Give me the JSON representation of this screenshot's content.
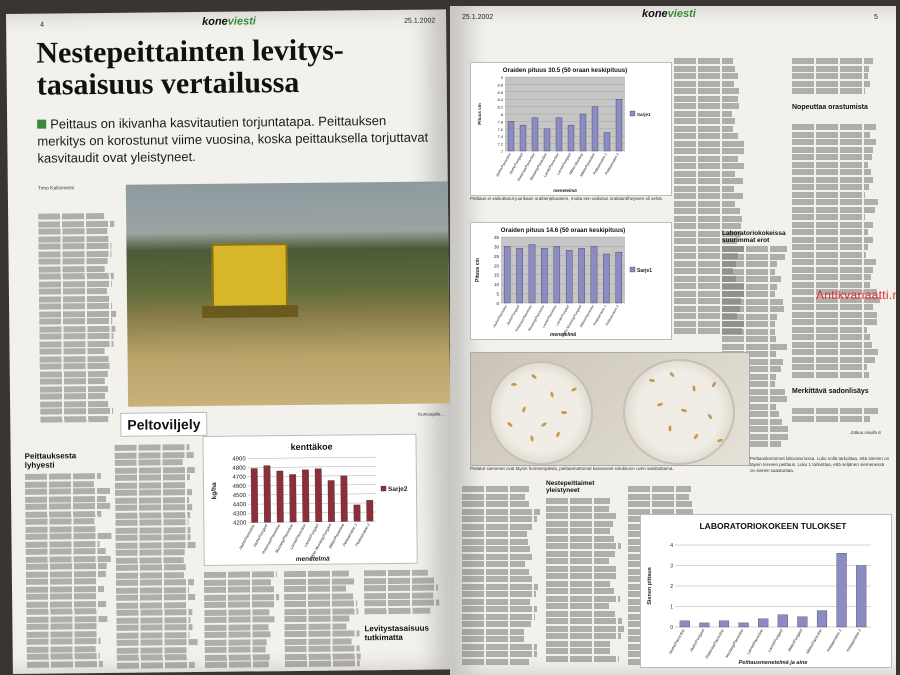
{
  "left_page": {
    "page_number": "4",
    "brand_a": "kone",
    "brand_b": "viesti",
    "date": "25.1.2002",
    "title": "Nestepeittainten levitys-tasaisuus vertailussa",
    "lead": "Peittaus on ikivanha kasvitautien torjuntatapa. Peittauksen merkitys on korostunut viime vuosina, koska peittauksella torjuttavat kasvitaudit ovat yleistyneet.",
    "byline": "Timo Kallioniemi",
    "section_tag": "Peltoviljely",
    "subheading_1": "Peittauksesta lyhyesti",
    "subheading_2": "Levitystasaisuus tutkimatta",
    "photo_caption": "Kumoajalla ..."
  },
  "right_page": {
    "page_number": "5",
    "brand_a": "kone",
    "brand_b": "viesti",
    "date": "25.1.2002",
    "subheading_1": "Laboratoriokokeissa suurimmat erot",
    "subheading_2": "Nopeuttaa orastumista",
    "subheading_3": "Merkittävä sadonlisäys",
    "subheading_4": "Nestepeittaimet yleistyneet",
    "chart1_caption": "Peittaus ei vaikuttanut juurikaan oraittenpituuteen, mutta sen vaikutus oraitaantiheyteen oli selvä.",
    "petri_caption": "Peitatut siemenet ovat täysin homeenpäisiä, peittaamattomat kasvaneet solukkoon oven sasittuittama.",
    "lab_caption": "Peittauskertoimet laboratoriossa. Luku nolla tarkoittaa, että siemen on täysin terveen peittaus. Luku 1 tarkoittaa, että seljänen siemenessä on sienen saastuntaa.",
    "continues": "Jatkuu sivulla 6",
    "watermark": "Antikvariaatti.net"
  },
  "chart_data": [
    {
      "type": "bar",
      "title": "kenttäkoe",
      "ylabel": "kg/ha",
      "xlabel": "menetelmä",
      "ylim": [
        4200,
        4900
      ],
      "yticks": [
        4200,
        4300,
        4400,
        4500,
        4600,
        4700,
        4800,
        4900
      ],
      "categories": [
        "Jauhe/Panoctine",
        "Jauhe/Fungard",
        "Rotamaa/Panoctine",
        "Mustang/Panoctine",
        "Lamet/Panoctine",
        "Lamet/Fungard",
        "Mikko Mustang/Fungard",
        "Mikko/Panoctine",
        "Peittaamaton 1",
        "Peittaamaton 2"
      ],
      "series": [
        {
          "name": "Sarje2",
          "values": [
            4790,
            4820,
            4760,
            4720,
            4770,
            4780,
            4650,
            4700,
            4380,
            4430
          ]
        }
      ]
    },
    {
      "type": "bar",
      "title": "Oraiden pituus 30.5 (50 oraan keskipituus)",
      "ylabel": "Pituus cm",
      "xlabel": "menetelmä",
      "ylim": [
        7,
        9
      ],
      "yticks": [
        7,
        7.2,
        7.4,
        7.6,
        7.8,
        8,
        8.2,
        8.4,
        8.6,
        8.8,
        9
      ],
      "categories": [
        "Jauhe/Panoctine",
        "Jauhe/Fungard",
        "Rotamaa/Panoctine",
        "Mustang/Panoctine",
        "Lamet/Panoctine",
        "Lamet/Fungard",
        "Mikko Mustang",
        "Mikko/Panoctine",
        "Peittaamaton 1",
        "Peittaamaton 2"
      ],
      "series": [
        {
          "name": "Sarje1",
          "values": [
            7.8,
            7.7,
            7.9,
            7.6,
            7.9,
            7.7,
            8.0,
            8.2,
            7.5,
            8.4
          ]
        }
      ]
    },
    {
      "type": "bar",
      "title": "Oraiden pituus 14.6 (50 oraan keskipituus)",
      "ylabel": "Pituus cm",
      "xlabel": "menetelmä",
      "ylim": [
        0,
        35
      ],
      "yticks": [
        0,
        5,
        10,
        15,
        20,
        25,
        30,
        35
      ],
      "categories": [
        "Jauhe/Panoctine",
        "Jauhe/Fungard",
        "Rotamaa/Panoctine",
        "Mustang/Panoctine",
        "Lamet/Panoctine",
        "Lamet/Fungard",
        "Mikko Mustang/Fungard",
        "Mikko/Panoctine",
        "Peittaamaton 1",
        "Peittaamaton 2"
      ],
      "series": [
        {
          "name": "Sarje1",
          "values": [
            30,
            29,
            31,
            29,
            30,
            28,
            29,
            30,
            26,
            27
          ]
        }
      ]
    },
    {
      "type": "bar",
      "title": "LABORATORIOKOKEEN TULOKSET",
      "ylabel": "Sienen pittaus",
      "xlabel": "Peittausmenetelmä ja aine",
      "ylim": [
        0,
        4
      ],
      "yticks": [
        0,
        1,
        2,
        3,
        4
      ],
      "categories": [
        "Jauhe/Panoctine",
        "Jauhe/Fungard",
        "Rotamaa/Panoctine",
        "Mustang/Panoctine",
        "Lamet/Panoctine",
        "Lamet/Fungard",
        "Mikko/Fungard",
        "Mikko/Panoctine",
        "Peittaamaton 1",
        "Peittaamaton 2"
      ],
      "series": [
        {
          "name": "Sarje1",
          "values": [
            0.3,
            0.2,
            0.3,
            0.2,
            0.4,
            0.6,
            0.5,
            0.8,
            3.6,
            3.0
          ]
        }
      ]
    }
  ]
}
